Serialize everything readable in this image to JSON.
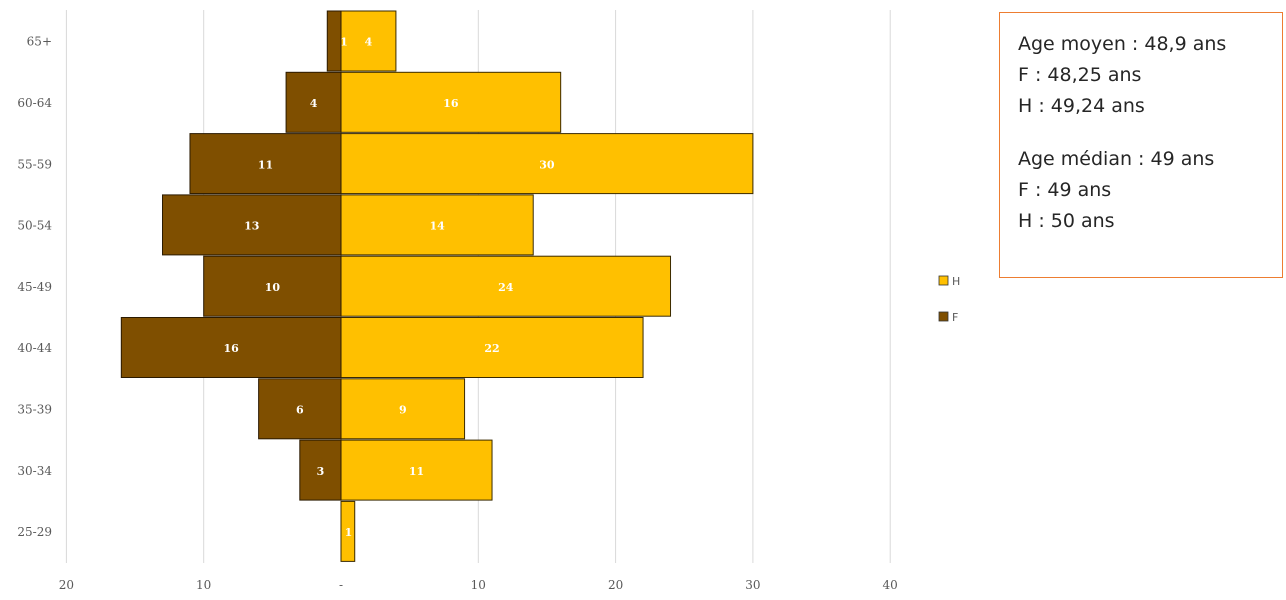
{
  "chart_data": {
    "type": "bar",
    "orientation": "horizontal",
    "stacked": "diverging",
    "categories": [
      "65+",
      "60-64",
      "55-59",
      "50-54",
      "45-49",
      "40-44",
      "35-39",
      "30-34",
      "25-29"
    ],
    "series": [
      {
        "name": "H",
        "values": [
          4,
          16,
          30,
          14,
          24,
          22,
          9,
          11,
          1
        ],
        "color": "#FFC000"
      },
      {
        "name": "F",
        "values": [
          1,
          4,
          11,
          13,
          10,
          16,
          6,
          3,
          0
        ],
        "color": "#7F4F00"
      }
    ],
    "x_ticks": [
      "20",
      "10",
      "-",
      "10",
      "20",
      "30",
      "40"
    ],
    "xlim": [
      -20,
      40
    ],
    "grid": true,
    "legend_position": "right",
    "title": "",
    "xlabel": "",
    "ylabel": ""
  },
  "info_box": {
    "lines": [
      "Age moyen : 48,9 ans",
      "F : 48,25 ans",
      "H : 49,24 ans",
      "Age médian : 49 ans",
      "F : 49 ans",
      "H : 50 ans"
    ]
  }
}
